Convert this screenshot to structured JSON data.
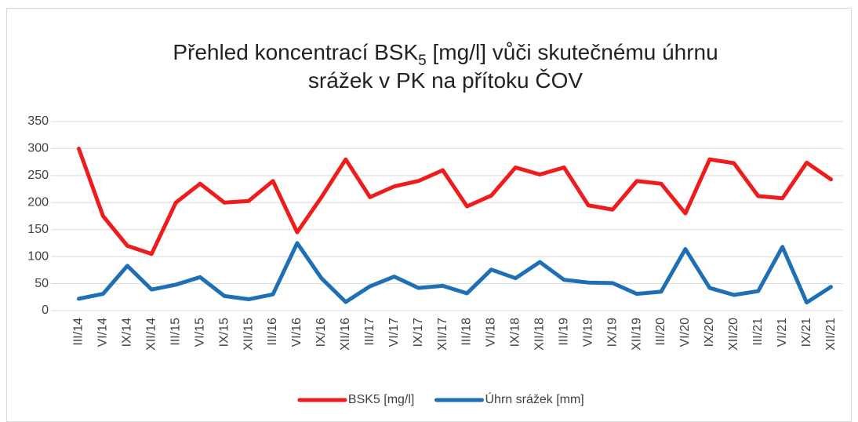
{
  "chart_data": {
    "type": "line",
    "title": {
      "line1_start": "Přehled koncentrací BSK",
      "line1_subscript": "5",
      "line1_end": " [mg/l] vůči skutečnému úhrnu",
      "line2": "srážek v PK na přítoku ČOV"
    },
    "categories": [
      "III/14",
      "VI/14",
      "IX/14",
      "XII/14",
      "III/15",
      "VI/15",
      "IX/15",
      "XII/15",
      "III/16",
      "VI/16",
      "IX/16",
      "XII/16",
      "III/17",
      "VI/17",
      "IX/17",
      "XII/17",
      "III/18",
      "VI/18",
      "IX/18",
      "XII/18",
      "III/19",
      "VI/19",
      "IX/19",
      "XII/19",
      "III/20",
      "VI/20",
      "IX/20",
      "XII/20",
      "III/21",
      "VI/21",
      "IX/21",
      "XII/21"
    ],
    "series": [
      {
        "name": "BSK5 [mg/l]",
        "color": "#ee1c1c",
        "values": [
          300,
          175,
          120,
          105,
          200,
          235,
          200,
          203,
          240,
          145,
          210,
          280,
          210,
          230,
          240,
          260,
          193,
          213,
          265,
          252,
          265,
          195,
          187,
          240,
          235,
          180,
          280,
          273,
          212,
          208,
          274,
          243
        ]
      },
      {
        "name": "Úhrn srážek [mm]",
        "color": "#1f6fb5",
        "values": [
          22,
          31,
          83,
          39,
          48,
          62,
          27,
          21,
          30,
          125,
          60,
          16,
          45,
          63,
          42,
          46,
          32,
          76,
          60,
          90,
          57,
          52,
          51,
          31,
          35,
          114,
          42,
          29,
          36,
          118,
          15,
          44
        ]
      }
    ],
    "ylim": [
      0,
      350
    ],
    "yticks": [
      0,
      50,
      100,
      150,
      200,
      250,
      300,
      350
    ],
    "grid": true,
    "legend": "bottom"
  }
}
